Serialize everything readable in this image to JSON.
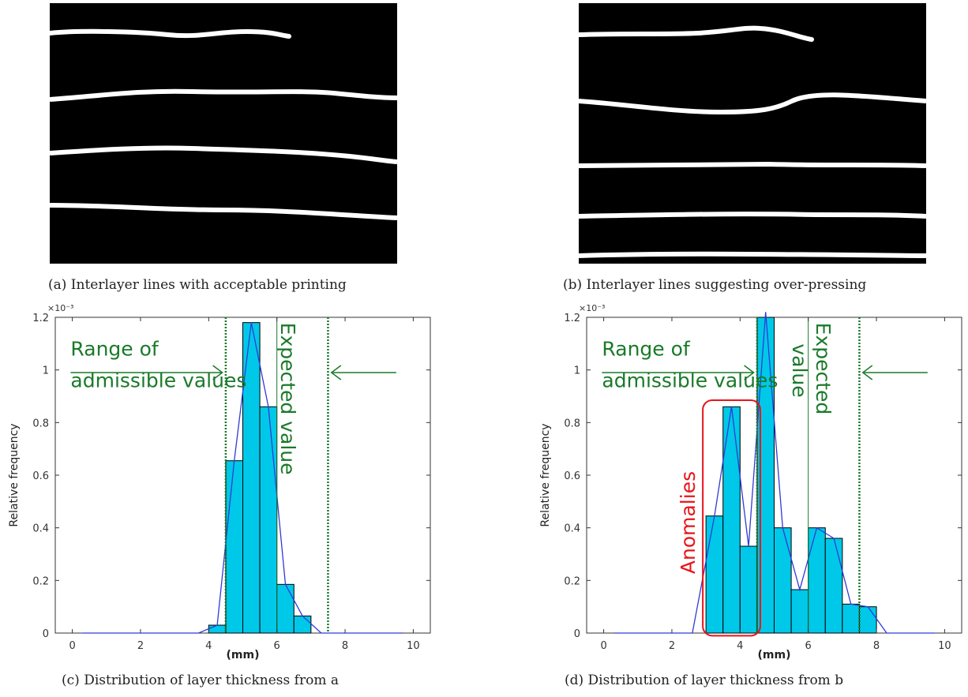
{
  "captions": {
    "a": "(a) Interlayer lines with acceptable printing",
    "b": "(b) Interlayer lines suggesting over-pressing",
    "c": "(c) Distribution of layer thickness from a",
    "d": "(d) Distribution of layer thickness from b"
  },
  "colors": {
    "bar_fill": "#00c8e8",
    "curve": "#2e3bd6",
    "annotation_green": "#1a7a2a",
    "anomaly_red": "#e8141a",
    "image_bg": "#000000",
    "line": "#ffffff"
  },
  "chart_data": [
    {
      "type": "bar",
      "panel": "c",
      "xlabel": "(mm)",
      "ylabel": "Relative frequency",
      "exponent_label": "×10⁻³",
      "xlim": [
        -0.5,
        10.5
      ],
      "ylim": [
        0,
        1.2
      ],
      "xticks": [
        0,
        2,
        4,
        6,
        8,
        10
      ],
      "yticks": [
        0,
        0.2,
        0.4,
        0.6,
        0.8,
        1,
        1.2
      ],
      "bin_width": 0.5,
      "bins": [
        {
          "x0": 4.0,
          "x1": 4.5,
          "value": 0.03
        },
        {
          "x0": 4.5,
          "x1": 5.0,
          "value": 0.655
        },
        {
          "x0": 5.0,
          "x1": 5.5,
          "value": 1.18
        },
        {
          "x0": 5.5,
          "x1": 6.0,
          "value": 0.86
        },
        {
          "x0": 6.0,
          "x1": 6.5,
          "value": 0.185
        },
        {
          "x0": 6.5,
          "x1": 7.0,
          "value": 0.065
        }
      ],
      "curve": [
        [
          0.3,
          0
        ],
        [
          3.7,
          0
        ],
        [
          4.25,
          0.03
        ],
        [
          4.75,
          0.655
        ],
        [
          5.25,
          1.18
        ],
        [
          5.75,
          0.86
        ],
        [
          6.25,
          0.185
        ],
        [
          6.75,
          0.065
        ],
        [
          7.3,
          0
        ],
        [
          9.7,
          0
        ]
      ],
      "dotted_lines_x": [
        4.5,
        7.5
      ],
      "expected_value_x": 6.0,
      "annotations": {
        "range_label": [
          "Range of",
          "admissible values"
        ],
        "expected_label": "Expected value"
      }
    },
    {
      "type": "bar",
      "panel": "d",
      "xlabel": "(mm)",
      "ylabel": "Relative frequency",
      "exponent_label": "×10⁻³",
      "xlim": [
        -0.5,
        10.5
      ],
      "ylim": [
        0,
        1.2
      ],
      "xticks": [
        0,
        2,
        4,
        6,
        8,
        10
      ],
      "yticks": [
        0,
        0.2,
        0.4,
        0.6,
        0.8,
        1,
        1.2
      ],
      "bin_width": 0.5,
      "bins": [
        {
          "x0": 3.0,
          "x1": 3.5,
          "value": 0.445
        },
        {
          "x0": 3.5,
          "x1": 4.0,
          "value": 0.86
        },
        {
          "x0": 4.0,
          "x1": 4.5,
          "value": 0.33
        },
        {
          "x0": 4.5,
          "x1": 5.0,
          "value": 1.2
        },
        {
          "x0": 5.0,
          "x1": 5.5,
          "value": 0.4
        },
        {
          "x0": 5.5,
          "x1": 6.0,
          "value": 0.165
        },
        {
          "x0": 6.0,
          "x1": 6.5,
          "value": 0.4
        },
        {
          "x0": 6.5,
          "x1": 7.0,
          "value": 0.36
        },
        {
          "x0": 7.0,
          "x1": 7.5,
          "value": 0.11
        },
        {
          "x0": 7.5,
          "x1": 8.0,
          "value": 0.1
        }
      ],
      "curve": [
        [
          0.3,
          0
        ],
        [
          2.6,
          0
        ],
        [
          3.25,
          0.445
        ],
        [
          3.75,
          0.86
        ],
        [
          4.25,
          0.33
        ],
        [
          4.75,
          1.22
        ],
        [
          5.25,
          0.4
        ],
        [
          5.75,
          0.165
        ],
        [
          6.25,
          0.4
        ],
        [
          6.75,
          0.36
        ],
        [
          7.25,
          0.11
        ],
        [
          7.75,
          0.1
        ],
        [
          8.3,
          0
        ],
        [
          9.7,
          0
        ]
      ],
      "dotted_lines_x": [
        4.5,
        7.5
      ],
      "expected_value_x": 6.0,
      "anomaly_range_x": [
        3.0,
        4.5
      ],
      "annotations": {
        "range_label": [
          "Range of",
          "admissible values"
        ],
        "expected_label": [
          "Expected",
          "value"
        ],
        "anomaly_label": "Anomalies"
      }
    }
  ]
}
